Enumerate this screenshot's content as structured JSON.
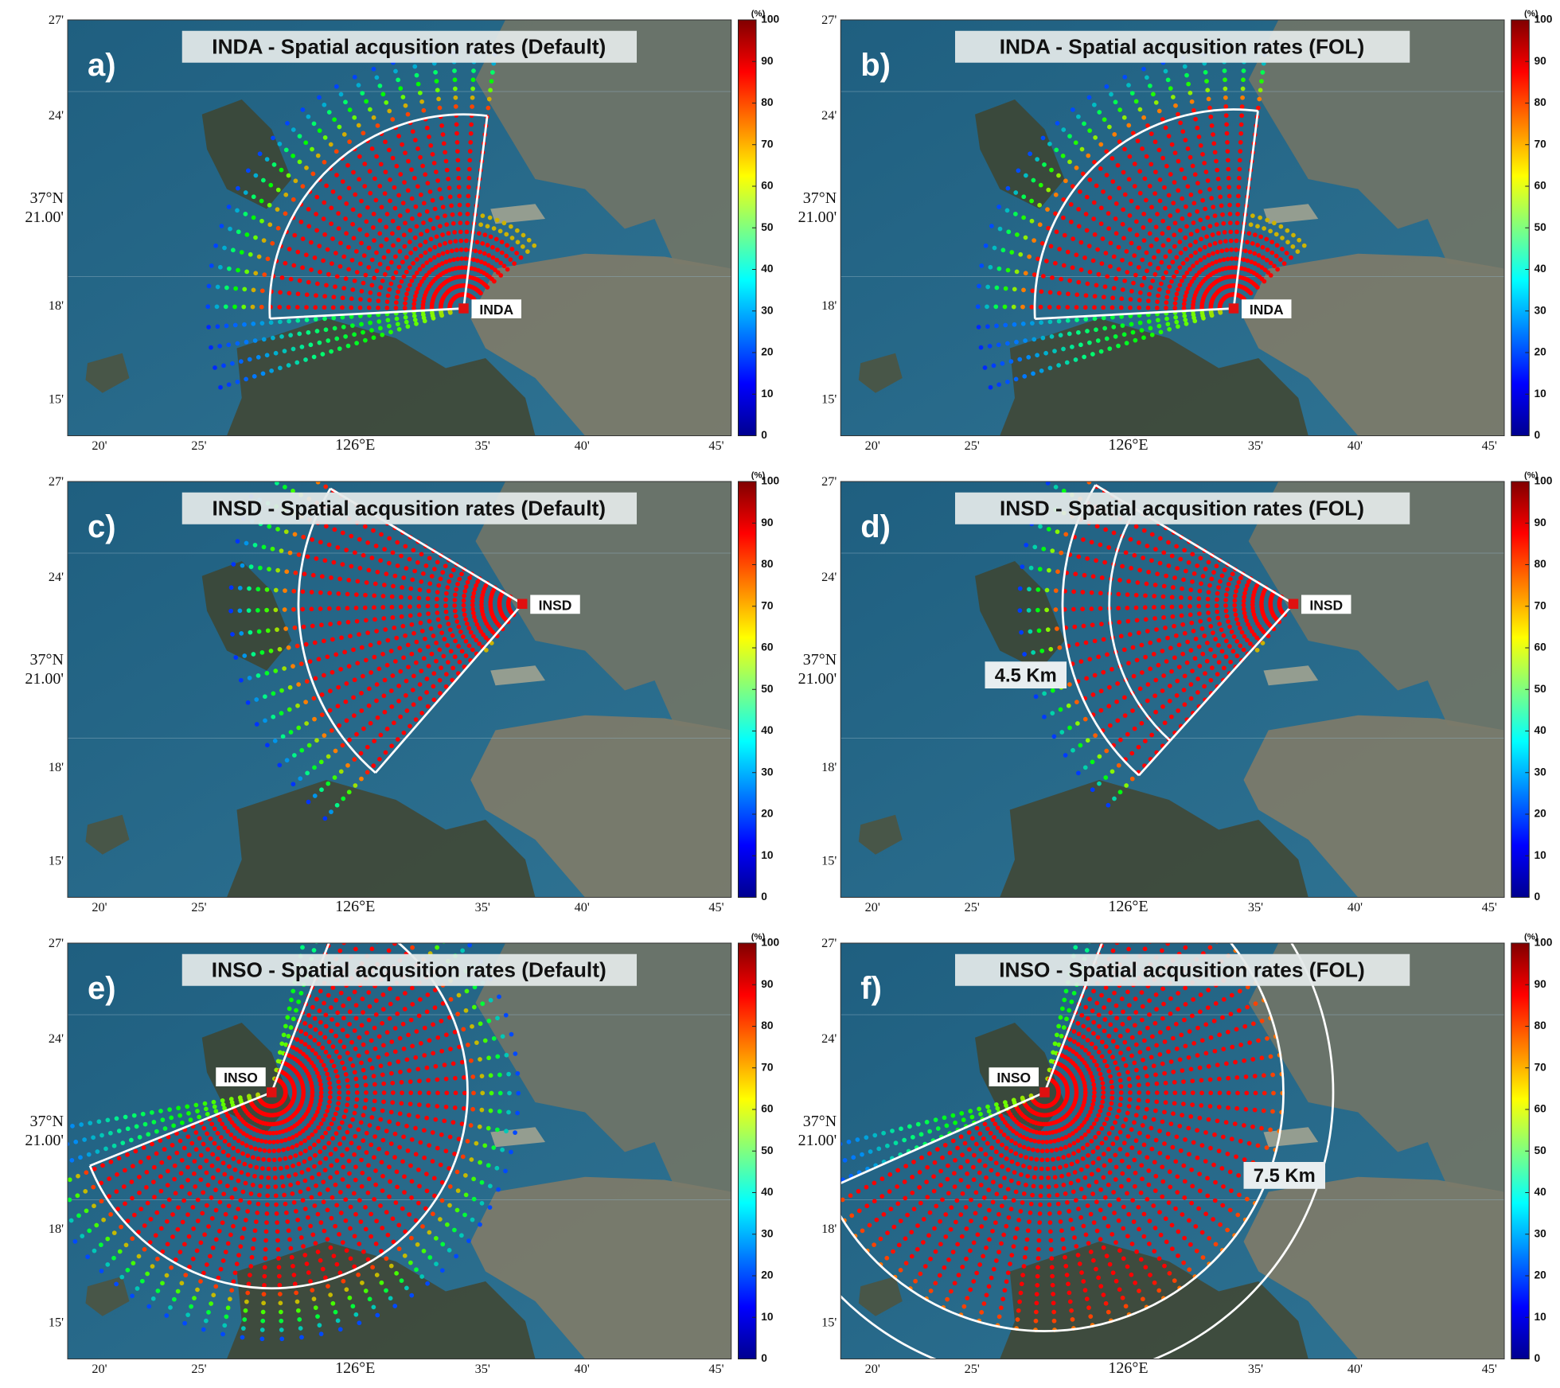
{
  "panels": [
    {
      "letter": "a)",
      "title": "INDA - Spatial acqusition rates (Default)",
      "station": "INDA"
    },
    {
      "letter": "b)",
      "title": "INDA - Spatial acqusition rates (FOL)",
      "station": "INDA"
    },
    {
      "letter": "c)",
      "title": "INSD - Spatial acqusition rates (Default)",
      "station": "INSD"
    },
    {
      "letter": "d)",
      "title": "INSD - Spatial acqusition rates (FOL)",
      "station": "INSD",
      "range_label": "4.5 Km"
    },
    {
      "letter": "e)",
      "title": "INSO - Spatial acqusition rates (Default)",
      "station": "INSO"
    },
    {
      "letter": "f)",
      "title": "INSO - Spatial acqusition rates (FOL)",
      "station": "INSO",
      "range_label": "7.5 Km"
    }
  ],
  "axes": {
    "x_labels": [
      "20'",
      "25'",
      "126°E",
      "35'",
      "40'",
      "45'"
    ],
    "y_labels": [
      "27'",
      "24'",
      "37°N",
      "21.00'",
      "18'",
      "15'"
    ]
  },
  "colorbar": {
    "unit": "(%)",
    "lim": [
      0,
      100
    ],
    "ticks": [
      0,
      10,
      20,
      30,
      40,
      50,
      60,
      70,
      80,
      90,
      100
    ]
  }
}
